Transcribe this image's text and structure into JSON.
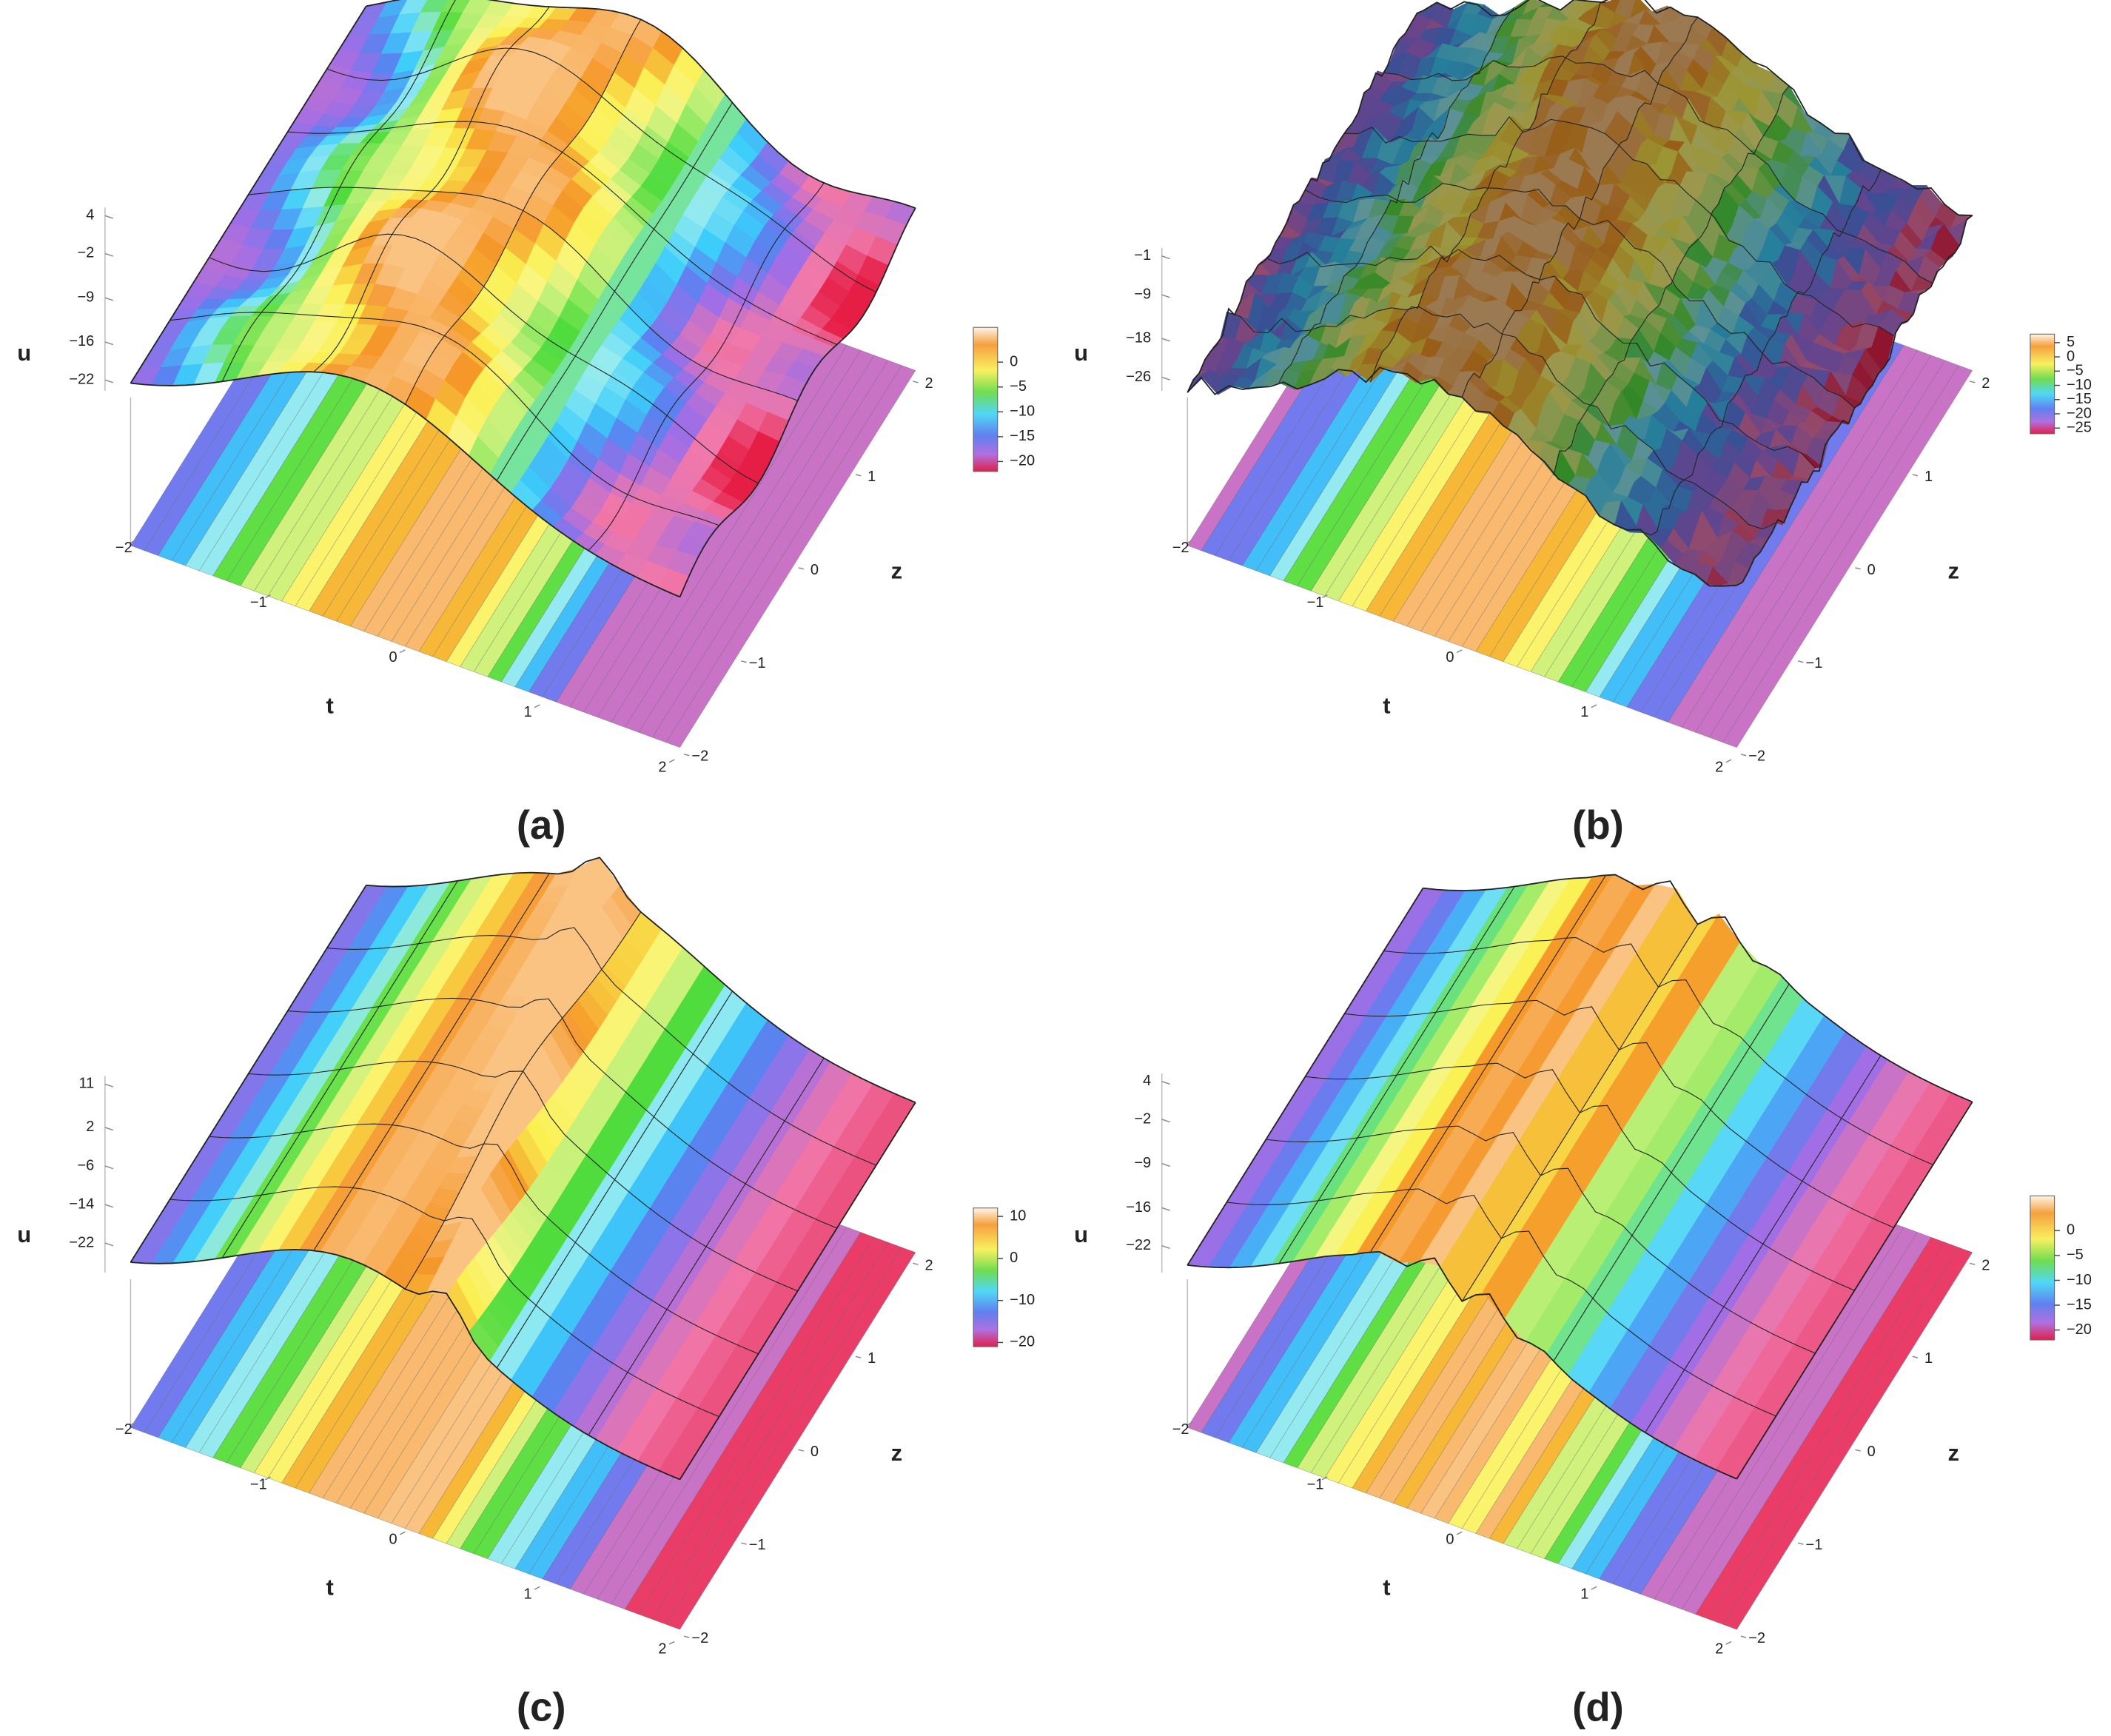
{
  "chart_data": [
    {
      "type": "surface",
      "label": "(a)",
      "xlabel": "t",
      "ylabel": "z",
      "zlabel": "u",
      "xlim": [
        -2,
        2
      ],
      "xticks": [
        {
          "value": -2,
          "label": "−2"
        },
        {
          "value": -1,
          "label": "−1"
        },
        0,
        1,
        2
      ],
      "ylim": [
        -2,
        2
      ],
      "yticks": [
        {
          "value": -2,
          "label": "−2"
        },
        {
          "value": -1,
          "label": "−1"
        },
        0,
        1,
        2
      ],
      "zlim": [
        -22,
        4
      ],
      "zticks": [
        4,
        {
          "value": -2,
          "label": "−2"
        },
        {
          "value": -9,
          "label": "−9"
        },
        {
          "value": -16,
          "label": "−16"
        },
        {
          "value": -22,
          "label": "−22"
        }
      ],
      "clim": [
        -22,
        7
      ],
      "cticks": [
        0,
        {
          "value": -5,
          "label": "−5"
        },
        {
          "value": -10,
          "label": "−10"
        },
        {
          "value": -15,
          "label": "−15"
        },
        {
          "value": -20,
          "label": "−20"
        }
      ]
    },
    {
      "type": "surface",
      "label": "(b)",
      "xlabel": "t",
      "ylabel": "z",
      "zlabel": "u",
      "xlim": [
        -2,
        2
      ],
      "xticks": [
        {
          "value": -2,
          "label": "−2"
        },
        {
          "value": -1,
          "label": "−1"
        },
        0,
        1,
        2
      ],
      "ylim": [
        -2,
        2
      ],
      "yticks": [
        {
          "value": -2,
          "label": "−2"
        },
        {
          "value": -1,
          "label": "−1"
        },
        0,
        1,
        2
      ],
      "zlim": [
        -26,
        -1
      ],
      "zticks": [
        {
          "value": -1,
          "label": "−1"
        },
        {
          "value": -9,
          "label": "−9"
        },
        {
          "value": -18,
          "label": "−18"
        },
        {
          "value": -26,
          "label": "−26"
        }
      ],
      "clim": [
        -27,
        8
      ],
      "cticks": [
        5,
        0,
        {
          "value": -5,
          "label": "−5"
        },
        {
          "value": -10,
          "label": "−10"
        },
        {
          "value": -15,
          "label": "−15"
        },
        {
          "value": -20,
          "label": "−20"
        },
        {
          "value": -25,
          "label": "−25"
        }
      ]
    },
    {
      "type": "surface",
      "label": "(c)",
      "xlabel": "t",
      "ylabel": "z",
      "zlabel": "u",
      "xlim": [
        -2,
        2
      ],
      "xticks": [
        {
          "value": -2,
          "label": "−2"
        },
        {
          "value": -1,
          "label": "−1"
        },
        0,
        1,
        2
      ],
      "ylim": [
        -2,
        2
      ],
      "yticks": [
        {
          "value": -2,
          "label": "−2"
        },
        {
          "value": -1,
          "label": "−1"
        },
        0,
        1,
        2
      ],
      "zlim": [
        -22,
        11
      ],
      "zticks": [
        11,
        2,
        {
          "value": -6,
          "label": "−6"
        },
        {
          "value": -14,
          "label": "−14"
        },
        {
          "value": -22,
          "label": "−22"
        }
      ],
      "clim": [
        -21,
        12
      ],
      "cticks": [
        10,
        0,
        {
          "value": -10,
          "label": "−10"
        },
        {
          "value": -20,
          "label": "−20"
        }
      ]
    },
    {
      "type": "surface",
      "label": "(d)",
      "xlabel": "t",
      "ylabel": "z",
      "zlabel": "u",
      "xlim": [
        -2,
        2
      ],
      "xticks": [
        {
          "value": -2,
          "label": "−2"
        },
        {
          "value": -1,
          "label": "−1"
        },
        0,
        1,
        2
      ],
      "ylim": [
        -2,
        2
      ],
      "yticks": [
        {
          "value": -2,
          "label": "−2"
        },
        {
          "value": -1,
          "label": "−1"
        },
        0,
        1,
        2
      ],
      "zlim": [
        -22,
        4
      ],
      "zticks": [
        4,
        {
          "value": -2,
          "label": "−2"
        },
        {
          "value": -9,
          "label": "−9"
        },
        {
          "value": -16,
          "label": "−16"
        },
        {
          "value": -22,
          "label": "−22"
        }
      ],
      "clim": [
        -22,
        7
      ],
      "cticks": [
        0,
        {
          "value": -5,
          "label": "−5"
        },
        {
          "value": -10,
          "label": "−10"
        },
        {
          "value": -15,
          "label": "−15"
        },
        {
          "value": -20,
          "label": "−20"
        }
      ]
    }
  ]
}
